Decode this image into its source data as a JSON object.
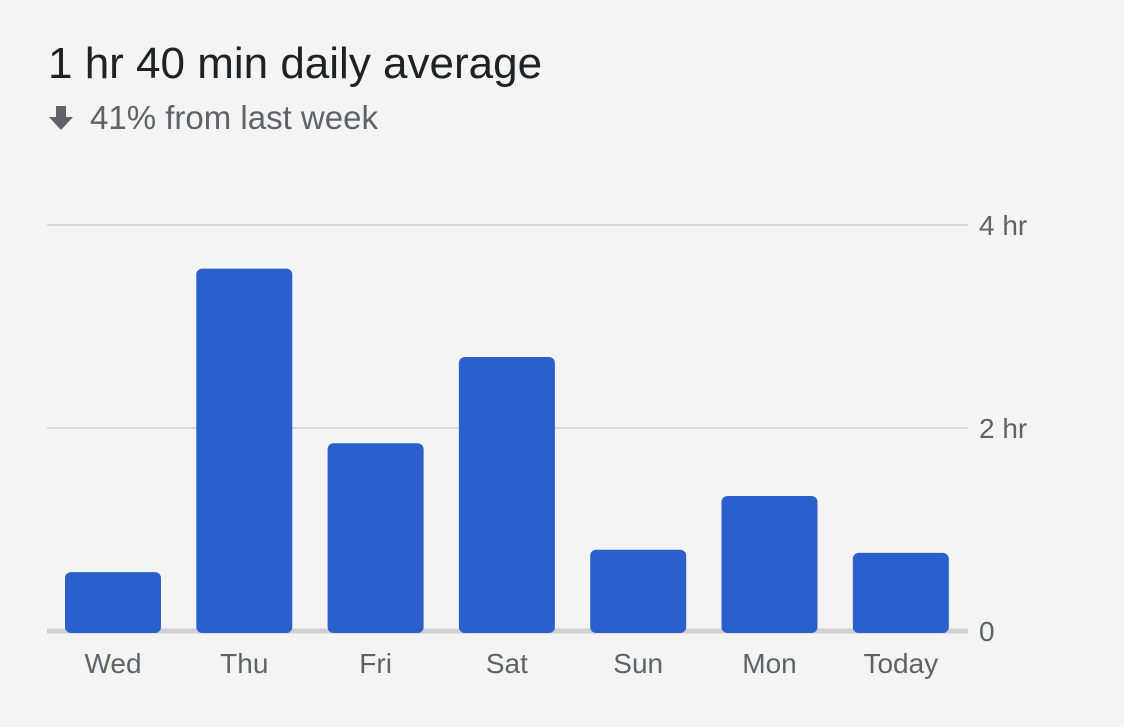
{
  "header": {
    "title": "1 hr 40 min daily average",
    "change_icon": "arrow-down-icon",
    "change_text": "41% from last week"
  },
  "colors": {
    "bar": "#2a5fcc",
    "grid": "#d9d9d9",
    "baseline": "#d0d0d0",
    "text_secondary": "#5f6368"
  },
  "chart_data": {
    "type": "bar",
    "categories": [
      "Wed",
      "Thu",
      "Fri",
      "Sat",
      "Sun",
      "Mon",
      "Today"
    ],
    "values_hours": [
      0.58,
      3.57,
      1.85,
      2.7,
      0.8,
      1.33,
      0.77
    ],
    "ylim_hours": [
      0,
      4
    ],
    "yticks": [
      {
        "value": 0,
        "label": "0"
      },
      {
        "value": 2,
        "label": "2 hr"
      },
      {
        "value": 4,
        "label": "4 hr"
      }
    ],
    "grid": true,
    "title": "",
    "xlabel": "",
    "ylabel": ""
  }
}
